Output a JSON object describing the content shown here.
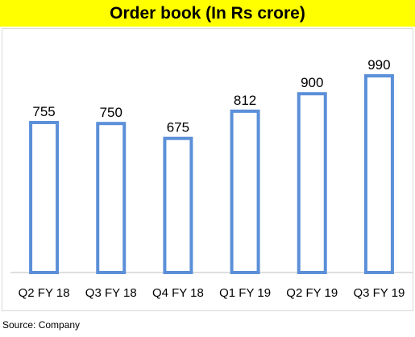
{
  "header": {
    "title": "Order book (In Rs crore)",
    "title_bg": "#ffff00"
  },
  "footer": {
    "source": "Source: Company"
  },
  "colors": {
    "bar_stroke": "#5b8fd8",
    "bar_fill": "#ffffff",
    "axis": "#bfbfbf"
  },
  "chart_data": {
    "type": "bar",
    "title": "Order book (In Rs crore)",
    "categories": [
      "Q2 FY 18",
      "Q3 FY 18",
      "Q4 FY 18",
      "Q1 FY 19",
      "Q2 FY 19",
      "Q3 FY 19"
    ],
    "values": [
      755,
      750,
      675,
      812,
      900,
      990
    ],
    "data_labels": [
      "755",
      "750",
      "675",
      "812",
      "900",
      "990"
    ],
    "xlabel": "",
    "ylabel": "",
    "ylim": [
      0,
      1100
    ],
    "grid": false,
    "legend": "none"
  }
}
